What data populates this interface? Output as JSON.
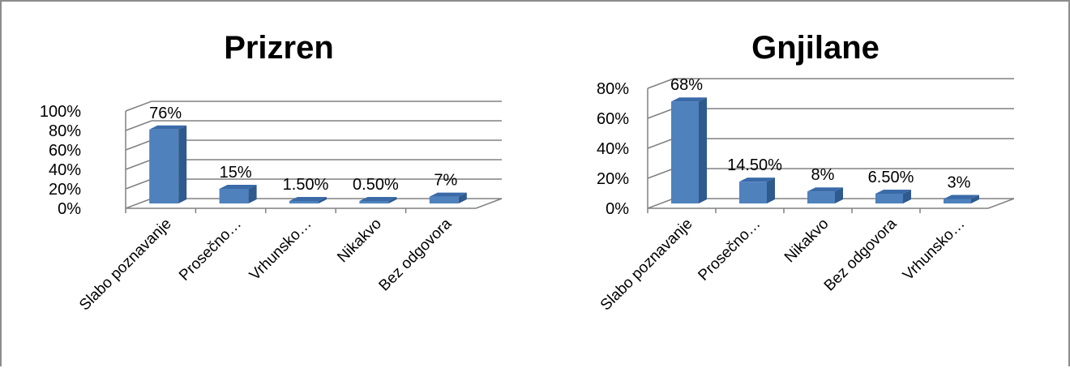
{
  "colors": {
    "bar_front": "#4f81bd",
    "bar_side": "#2e5a8e",
    "bar_top": "#3a6aa8",
    "grid": "#808080",
    "frame": "#8c8c8c"
  },
  "chart_data": [
    {
      "type": "bar",
      "title": "Prizren",
      "categories": [
        "Slabo poznavanje",
        "Prosečno…",
        "Vrhunsko…",
        "Nikakvo",
        "Bez odgovora"
      ],
      "values": [
        76,
        15,
        1.5,
        0.5,
        7
      ],
      "data_labels": [
        "76%",
        "15%",
        "1.50%",
        "0.50%",
        "7%"
      ],
      "ylim": [
        0,
        100
      ],
      "yticks": [
        "0%",
        "20%",
        "40%",
        "60%",
        "80%",
        "100%"
      ],
      "grid": true,
      "legend": "none"
    },
    {
      "type": "bar",
      "title": "Gnjilane",
      "categories": [
        "Slabo poznavanje",
        "Prosečno…",
        "Nikakvo",
        "Bez odgovora",
        "Vrhunsko…"
      ],
      "values": [
        68,
        14.5,
        8,
        6.5,
        3
      ],
      "data_labels": [
        "68%",
        "14.50%",
        "8%",
        "6.50%",
        "3%"
      ],
      "ylim": [
        0,
        80
      ],
      "yticks": [
        "0%",
        "20%",
        "40%",
        "60%",
        "80%"
      ],
      "grid": true,
      "legend": "none"
    }
  ]
}
